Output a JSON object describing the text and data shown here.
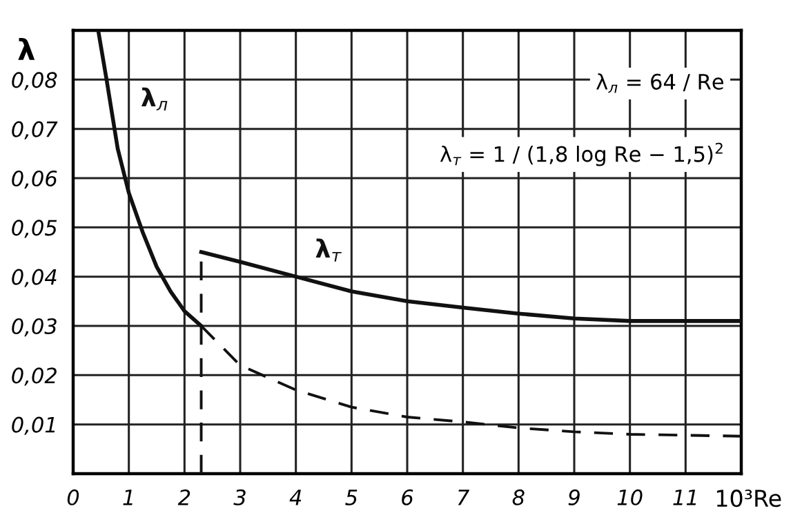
{
  "chart_data": {
    "type": "line",
    "xlabel": "10³Re",
    "ylabel": "λ",
    "series": [
      {
        "name": "λ$_{л}$",
        "color": "#111111",
        "line_style": "solid",
        "x": [
          0.45,
          0.6,
          0.8,
          1.0,
          1.25,
          1.5,
          1.75,
          2.0,
          2.3
        ],
        "values": [
          0.09,
          0.08,
          0.066,
          0.057,
          0.049,
          0.042,
          0.037,
          0.033,
          0.03
        ]
      },
      {
        "color": "#111111",
        "line_style": "dashed",
        "x": [
          2.3,
          3,
          4,
          5,
          6,
          7,
          8,
          9,
          10,
          12
        ],
        "values": [
          0.03,
          0.022,
          0.017,
          0.0135,
          0.0115,
          0.0105,
          0.0093,
          0.0085,
          0.008,
          0.0076
        ]
      },
      {
        "name": "λ$_{т}$",
        "color": "#111111",
        "line_style": "solid",
        "x": [
          2.3,
          3,
          4,
          5,
          6,
          7,
          8,
          9,
          10,
          11,
          12
        ],
        "values": [
          0.045,
          0.043,
          0.04,
          0.037,
          0.035,
          0.0337,
          0.0325,
          0.0315,
          0.031,
          0.031,
          0.031
        ]
      },
      {
        "color": "#111111",
        "line_style": "dashed",
        "x": [
          2.3,
          2.3
        ],
        "values": [
          0,
          0.045
        ]
      }
    ],
    "xlim": [
      0,
      12
    ],
    "ylim": [
      0,
      0.09
    ],
    "xticks": [
      0,
      1,
      2,
      3,
      4,
      5,
      6,
      7,
      8,
      9,
      10,
      11
    ],
    "yticks": [
      {
        "value": 0.01,
        "label": "0,01"
      },
      {
        "value": 0.02,
        "label": "0,02"
      },
      {
        "value": 0.03,
        "label": "0,03"
      },
      {
        "value": 0.04,
        "label": "0,04"
      },
      {
        "value": 0.05,
        "label": "0,05"
      },
      {
        "value": 0.06,
        "label": "0,06"
      },
      {
        "value": 0.07,
        "label": "0,07"
      },
      {
        "value": 0.08,
        "label": "0,08"
      },
      {
        "value": 0.09,
        "label": null
      }
    ],
    "annotations": [
      "λ$_{л}$ = 64 / Re",
      "λ$_{т}$ = 1 / (1,8 log Re − 1,5)$^{2}$"
    ],
    "grid": true,
    "legend": false
  }
}
